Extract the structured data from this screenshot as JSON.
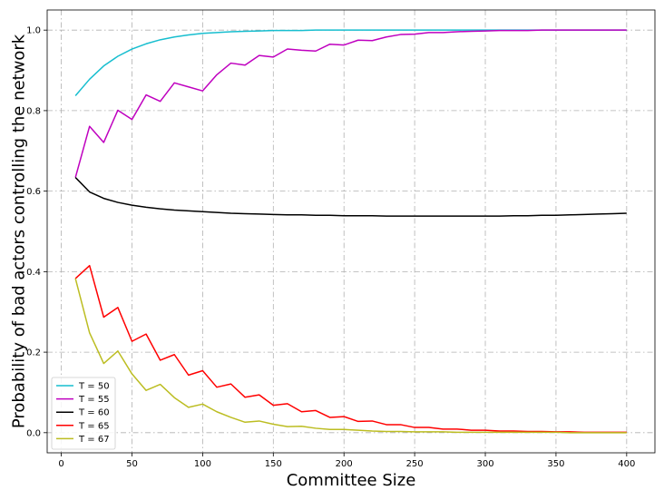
{
  "chart_data": {
    "type": "line",
    "title": "",
    "xlabel": "Committee Size",
    "ylabel": "Probability of bad actors controlling the network",
    "xlim": [
      -10,
      420
    ],
    "ylim": [
      -0.05,
      1.05
    ],
    "xticks": [
      0,
      50,
      100,
      150,
      200,
      250,
      300,
      350,
      400
    ],
    "yticks": [
      0.0,
      0.2,
      0.4,
      0.6,
      0.8,
      1.0
    ],
    "xtick_labels": [
      "0",
      "50",
      "100",
      "150",
      "200",
      "250",
      "300",
      "350",
      "400"
    ],
    "ytick_labels": [
      "0.0",
      "0.2",
      "0.4",
      "0.6",
      "0.8",
      "1.0"
    ],
    "grid": true,
    "legend_position": "lower-left",
    "x": [
      10,
      20,
      30,
      40,
      50,
      60,
      70,
      80,
      90,
      100,
      110,
      120,
      130,
      140,
      150,
      160,
      170,
      180,
      190,
      200,
      210,
      220,
      230,
      240,
      250,
      260,
      270,
      280,
      290,
      300,
      310,
      320,
      330,
      340,
      350,
      360,
      370,
      380,
      390,
      400
    ],
    "series": [
      {
        "name": "T = 50",
        "color": "#17becf",
        "values": [
          0.837,
          0.878,
          0.911,
          0.935,
          0.953,
          0.966,
          0.976,
          0.983,
          0.988,
          0.992,
          0.994,
          0.996,
          0.997,
          0.998,
          0.999,
          0.999,
          0.999,
          1.0,
          1.0,
          1.0,
          1.0,
          1.0,
          1.0,
          1.0,
          1.0,
          1.0,
          1.0,
          1.0,
          1.0,
          1.0,
          1.0,
          1.0,
          1.0,
          1.0,
          1.0,
          1.0,
          1.0,
          1.0,
          1.0,
          1.0
        ]
      },
      {
        "name": "T = 55",
        "color": "#bf00bf",
        "values": [
          0.634,
          0.761,
          0.721,
          0.801,
          0.778,
          0.839,
          0.823,
          0.869,
          0.859,
          0.849,
          0.889,
          0.918,
          0.913,
          0.937,
          0.933,
          0.953,
          0.95,
          0.948,
          0.965,
          0.963,
          0.975,
          0.974,
          0.983,
          0.989,
          0.99,
          0.994,
          0.994,
          0.996,
          0.997,
          0.998,
          0.999,
          0.999,
          0.999,
          1.0,
          1.0,
          1.0,
          1.0,
          1.0,
          1.0,
          1.0
        ]
      },
      {
        "name": "T = 60",
        "color": "#000000",
        "values": [
          0.634,
          0.598,
          0.582,
          0.572,
          0.565,
          0.56,
          0.556,
          0.553,
          0.551,
          0.549,
          0.547,
          0.545,
          0.544,
          0.543,
          0.542,
          0.541,
          0.541,
          0.54,
          0.54,
          0.539,
          0.539,
          0.539,
          0.538,
          0.538,
          0.538,
          0.538,
          0.538,
          0.538,
          0.538,
          0.538,
          0.538,
          0.539,
          0.539,
          0.54,
          0.54,
          0.541,
          0.542,
          0.543,
          0.544,
          0.545
        ]
      },
      {
        "name": "T = 65",
        "color": "#ff0000",
        "values": [
          0.383,
          0.415,
          0.287,
          0.311,
          0.227,
          0.245,
          0.18,
          0.194,
          0.143,
          0.154,
          0.113,
          0.121,
          0.088,
          0.094,
          0.068,
          0.072,
          0.052,
          0.055,
          0.038,
          0.04,
          0.028,
          0.029,
          0.02,
          0.02,
          0.013,
          0.013,
          0.009,
          0.009,
          0.006,
          0.006,
          0.004,
          0.004,
          0.003,
          0.003,
          0.002,
          0.002,
          0.001,
          0.001,
          0.001,
          0.001
        ]
      },
      {
        "name": "T = 67",
        "color": "#bcbd22",
        "values": [
          0.383,
          0.248,
          0.172,
          0.203,
          0.146,
          0.105,
          0.12,
          0.087,
          0.063,
          0.071,
          0.052,
          0.038,
          0.026,
          0.029,
          0.021,
          0.015,
          0.016,
          0.011,
          0.008,
          0.008,
          0.006,
          0.004,
          0.003,
          0.003,
          0.002,
          0.002,
          0.002,
          0.001,
          0.001,
          0.001,
          0.001,
          0.001,
          0.001,
          0.001,
          0.001,
          0.0,
          0.0,
          0.0,
          0.0,
          0.0
        ]
      }
    ]
  }
}
